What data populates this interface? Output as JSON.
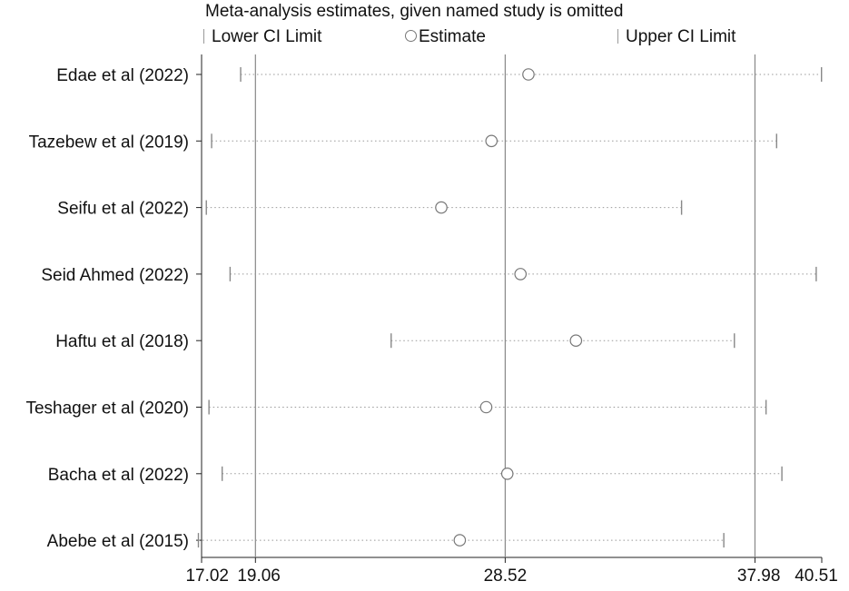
{
  "chart_data": {
    "type": "forest",
    "title": "Meta-analysis estimates, given named study is omitted",
    "legend": {
      "lower": "Lower CI Limit",
      "estimate": "Estimate",
      "upper": "Upper CI Limit",
      "placement": "top"
    },
    "xlim": [
      17.02,
      40.51
    ],
    "x_ticks": [
      "17.02",
      "19.06",
      "28.52",
      "37.98",
      "40.51"
    ],
    "reference_lines": [
      19.06,
      28.52,
      37.98
    ],
    "studies": [
      {
        "name": "Edae et al (2022)",
        "lower": 18.5,
        "estimate": 29.4,
        "upper": 40.5
      },
      {
        "name": "Tazebew et al (2019)",
        "lower": 17.4,
        "estimate": 28.0,
        "upper": 38.8
      },
      {
        "name": "Seifu et al (2022)",
        "lower": 17.2,
        "estimate": 26.1,
        "upper": 35.2
      },
      {
        "name": "Seid Ahmed (2022)",
        "lower": 18.1,
        "estimate": 29.1,
        "upper": 40.3
      },
      {
        "name": "Haftu et al (2018)",
        "lower": 24.2,
        "estimate": 31.2,
        "upper": 37.2
      },
      {
        "name": "Teshager et al (2020)",
        "lower": 17.3,
        "estimate": 27.8,
        "upper": 38.4
      },
      {
        "name": "Bacha et al (2022)",
        "lower": 17.8,
        "estimate": 28.6,
        "upper": 39.0
      },
      {
        "name": "Abebe et al (2015)",
        "lower": 16.9,
        "estimate": 26.8,
        "upper": 36.8
      }
    ],
    "grid": false
  }
}
